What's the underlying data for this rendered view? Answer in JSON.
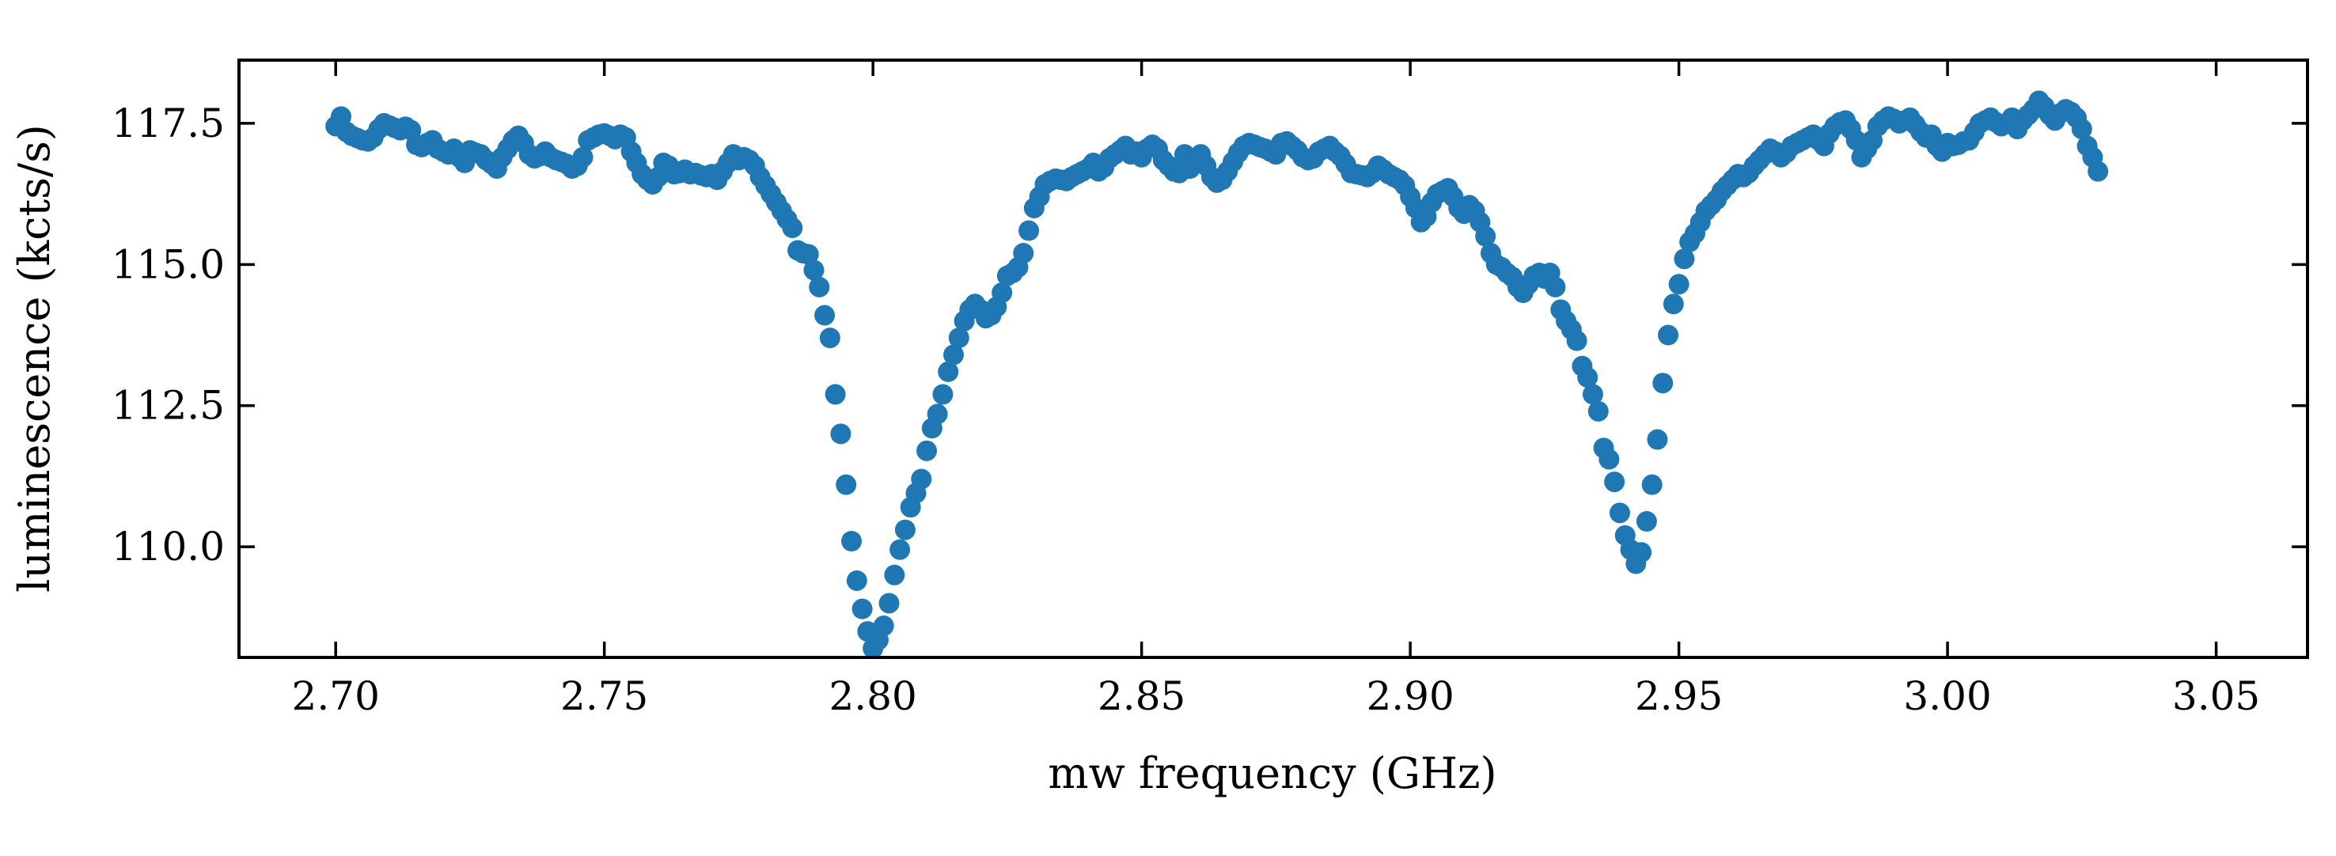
{
  "chart_data": {
    "type": "scatter",
    "title": "",
    "xlabel": "mw frequency (GHz)",
    "ylabel": "luminescence (kcts/s)",
    "xlim": [
      2.682,
      3.067
    ],
    "ylim": [
      108.04,
      118.62
    ],
    "xticks": [
      2.7,
      2.75,
      2.8,
      2.85,
      2.9,
      2.95,
      3.0,
      3.05
    ],
    "xtick_labels": [
      "2.70",
      "2.75",
      "2.80",
      "2.85",
      "2.90",
      "2.95",
      "3.00",
      "3.05"
    ],
    "yticks": [
      110.0,
      112.5,
      115.0,
      117.5
    ],
    "ytick_labels": [
      "110.0",
      "112.5",
      "115.0",
      "117.5"
    ],
    "grid": false,
    "legend": "none",
    "marker_color": "#1f77b4",
    "x_start": 2.7,
    "x_step": 0.001,
    "y": [
      117.45,
      117.62,
      117.35,
      117.28,
      117.24,
      117.2,
      117.18,
      117.25,
      117.4,
      117.5,
      117.46,
      117.42,
      117.38,
      117.44,
      117.38,
      117.12,
      117.08,
      117.15,
      117.2,
      117.05,
      117.0,
      116.95,
      117.05,
      116.9,
      116.8,
      117.02,
      116.98,
      116.95,
      116.85,
      116.78,
      116.7,
      116.9,
      117.05,
      117.2,
      117.28,
      117.15,
      116.95,
      116.88,
      116.92,
      117.0,
      116.9,
      116.85,
      116.82,
      116.78,
      116.7,
      116.75,
      116.9,
      117.2,
      117.25,
      117.3,
      117.32,
      117.28,
      117.22,
      117.3,
      117.25,
      117.0,
      116.8,
      116.6,
      116.5,
      116.42,
      116.55,
      116.8,
      116.75,
      116.6,
      116.62,
      116.68,
      116.6,
      116.62,
      116.58,
      116.55,
      116.6,
      116.5,
      116.65,
      116.8,
      116.95,
      116.85,
      116.9,
      116.85,
      116.75,
      116.55,
      116.4,
      116.25,
      116.1,
      115.95,
      115.8,
      115.65,
      115.25,
      115.2,
      115.18,
      114.9,
      114.6,
      114.1,
      113.7,
      112.7,
      112.0,
      111.1,
      110.1,
      109.4,
      108.9,
      108.5,
      108.2,
      108.35,
      108.6,
      109.0,
      109.5,
      109.95,
      110.3,
      110.7,
      110.95,
      111.2,
      111.7,
      112.1,
      112.35,
      112.7,
      113.1,
      113.4,
      113.7,
      114.0,
      114.2,
      114.3,
      114.2,
      114.05,
      114.1,
      114.25,
      114.5,
      114.8,
      114.85,
      114.95,
      115.2,
      115.6,
      116.0,
      116.2,
      116.42,
      116.48,
      116.52,
      116.5,
      116.48,
      116.55,
      116.6,
      116.65,
      116.7,
      116.8,
      116.65,
      116.72,
      116.88,
      116.95,
      117.02,
      117.1,
      116.95,
      117.0,
      116.9,
      117.05,
      117.12,
      117.05,
      116.85,
      116.75,
      116.65,
      116.62,
      116.95,
      116.7,
      116.8,
      116.95,
      116.75,
      116.55,
      116.45,
      116.5,
      116.65,
      116.82,
      116.98,
      117.1,
      117.15,
      117.12,
      117.08,
      117.05,
      117.0,
      116.95,
      117.15,
      117.18,
      117.1,
      117.02,
      116.9,
      116.85,
      116.88,
      117.0,
      117.05,
      117.1,
      117.0,
      116.92,
      116.78,
      116.62,
      116.6,
      116.58,
      116.55,
      116.62,
      116.75,
      116.68,
      116.6,
      116.55,
      116.5,
      116.4,
      116.2,
      116.0,
      115.75,
      115.85,
      116.1,
      116.25,
      116.3,
      116.35,
      116.2,
      116.0,
      115.9,
      116.05,
      115.95,
      115.75,
      115.5,
      115.2,
      115.0,
      114.95,
      114.85,
      114.78,
      114.6,
      114.5,
      114.65,
      114.8,
      114.85,
      114.75,
      114.85,
      114.6,
      114.2,
      114.0,
      113.85,
      113.65,
      113.2,
      113.0,
      112.7,
      112.4,
      111.75,
      111.55,
      111.15,
      110.6,
      110.2,
      109.95,
      109.7,
      109.9,
      110.45,
      111.1,
      111.9,
      112.9,
      113.75,
      114.3,
      114.65,
      115.1,
      115.4,
      115.55,
      115.75,
      115.95,
      116.05,
      116.15,
      116.3,
      116.4,
      116.5,
      116.6,
      116.55,
      116.62,
      116.75,
      116.85,
      116.95,
      117.05,
      117.0,
      116.9,
      116.98,
      117.1,
      117.15,
      117.2,
      117.25,
      117.3,
      117.2,
      117.1,
      117.32,
      117.45,
      117.52,
      117.55,
      117.4,
      117.2,
      116.9,
      117.05,
      117.2,
      117.45,
      117.55,
      117.62,
      117.58,
      117.5,
      117.55,
      117.6,
      117.48,
      117.35,
      117.25,
      117.3,
      117.1,
      117.0,
      117.15,
      117.1,
      117.12,
      117.18,
      117.2,
      117.35,
      117.5,
      117.55,
      117.6,
      117.52,
      117.45,
      117.5,
      117.6,
      117.4,
      117.55,
      117.65,
      117.75,
      117.9,
      117.8,
      117.65,
      117.55,
      117.68,
      117.75,
      117.7,
      117.6,
      117.4,
      117.1,
      116.9,
      116.65
    ]
  }
}
